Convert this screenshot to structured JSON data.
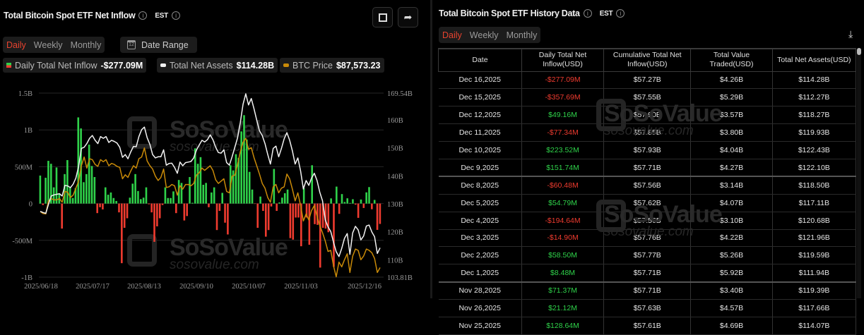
{
  "left": {
    "title": "Total Bitcoin Spot ETF Net Inflow",
    "timezone": "EST",
    "tabs": [
      "Daily",
      "Weekly",
      "Monthly"
    ],
    "active_tab": "Daily",
    "date_range_label": "Date Range",
    "legend": [
      {
        "label": "Daily Total Net Inflow",
        "value": "-$277.09M"
      },
      {
        "label": "Total Net Assets",
        "value": "$114.28B"
      },
      {
        "label": "BTC Price",
        "value": "$87,573.23"
      }
    ],
    "watermark": {
      "brand": "SoSoValue",
      "url": "sosovalue.com"
    }
  },
  "colors": {
    "inflow_positive": "#2fd24a",
    "inflow_negative": "#ef3b2f",
    "net_assets_line": "#f2f2f2",
    "btc_price_line": "#c98a08",
    "active_tab": "#e8432f"
  },
  "chart_data": {
    "type": "bar+line",
    "x_range": [
      "2025/06/18",
      "2025/12/16"
    ],
    "x_ticks": [
      "2025/06/18",
      "2025/07/17",
      "2025/08/13",
      "2025/09/10",
      "2025/10/07",
      "2025/11/03",
      "2025/12/16"
    ],
    "y_left": {
      "ticks": [
        "1.5B",
        "1B",
        "500M",
        "0",
        "-500M",
        "-1B"
      ],
      "tick_values": [
        1500,
        1000,
        500,
        0,
        -500,
        -1000
      ],
      "range": [
        -1000,
        1500
      ],
      "unit": "M USD"
    },
    "y_right": {
      "ticks": [
        "169.54B",
        "160B",
        "150B",
        "140B",
        "130B",
        "120B",
        "110B",
        "103.81B"
      ],
      "tick_values": [
        169.54,
        160,
        150,
        140,
        130,
        120,
        110,
        103.81
      ],
      "range": [
        103.81,
        169.54
      ],
      "unit": "B USD"
    },
    "grid": true,
    "series": [
      {
        "name": "Daily Total Net Inflow",
        "type": "bar",
        "axis": "left",
        "values": [
          380,
          -20,
          350,
          580,
          540,
          220,
          490,
          140,
          -340,
          400,
          590,
          220,
          75,
          210,
          1170,
          1020,
          290,
          400,
          800,
          510,
          360,
          -130,
          -50,
          -80,
          220,
          120,
          150,
          75,
          35,
          -120,
          -810,
          -330,
          -200,
          80,
          270,
          400,
          170,
          60,
          80,
          220,
          -10,
          -120,
          -520,
          -310,
          -200,
          -20,
          220,
          75,
          75,
          165,
          -130,
          320,
          280,
          -230,
          -170,
          360,
          10,
          750,
          540,
          630,
          255,
          280,
          -50,
          150,
          220,
          -360,
          -100,
          145,
          -260,
          -420,
          520,
          450,
          670,
          620,
          980,
          1200,
          870,
          430,
          190,
          -5,
          -330,
          95,
          -100,
          -450,
          -360,
          -40,
          470,
          -100,
          15,
          80,
          140,
          190,
          -470,
          -490,
          -190,
          -190,
          -580,
          210,
          -190,
          -560,
          520,
          -280,
          -290,
          -870,
          -330,
          -340,
          -390,
          70,
          -860,
          230,
          -140,
          128.64,
          21.12,
          71.37,
          8.48,
          58.5,
          -14.9,
          -194.64,
          54.79,
          -60.48,
          151.74,
          223.52,
          -77.34,
          49.16,
          -357.69,
          -277.09
        ]
      },
      {
        "name": "Total Net Assets",
        "type": "line",
        "axis": "right",
        "values": [
          127.3,
          126.9,
          126.6,
          129.8,
          132.8,
          133.2,
          133.4,
          133.6,
          132.8,
          136.6,
          136.4,
          135.8,
          137.0,
          139.2,
          143.4,
          149.8,
          150.2,
          151.5,
          153.4,
          154.4,
          152.7,
          151.5,
          154.0,
          153.4,
          154.0,
          151.9,
          152.7,
          152.3,
          151.7,
          150.2,
          146.6,
          147.6,
          146.1,
          148.5,
          150.5,
          150.4,
          154.0,
          156.5,
          157.4,
          153.6,
          151.2,
          147.6,
          146.4,
          146.8,
          146.8,
          149.3,
          143.8,
          144.4,
          144.5,
          143.0,
          140.9,
          144.9,
          143.6,
          144.7,
          144.9,
          145.1,
          146.4,
          149.2,
          151.0,
          152.7,
          152.1,
          152.9,
          154.6,
          152.9,
          150.2,
          148.3,
          148.1,
          149.3,
          144.7,
          143.8,
          146.8,
          150.2,
          153.6,
          159.1,
          165.5,
          169.3,
          165.3,
          167.6,
          163.9,
          159.9,
          156.1,
          154.4,
          151.5,
          147.6,
          144.2,
          149.8,
          150.6,
          146.8,
          149.8,
          153.2,
          155.4,
          152.7,
          148.9,
          144.2,
          146.4,
          141.7,
          135.3,
          138.3,
          136.6,
          139.2,
          140.9,
          138.3,
          134.1,
          131.1,
          124.3,
          121.8,
          120.1,
          116.3,
          112.9,
          111.2,
          114.07,
          117.66,
          119.39,
          111.94,
          119.59,
          121.96,
          120.68,
          117.11,
          118.5,
          122.1,
          122.43,
          119.93,
          118.27,
          112.27,
          114.28
        ]
      },
      {
        "name": "BTC Price",
        "type": "line",
        "axis": "hidden",
        "values": [
          104300,
          103700,
          103600,
          107500,
          108200,
          107800,
          107800,
          108200,
          107100,
          110300,
          110100,
          108500,
          109200,
          111300,
          113400,
          118000,
          120600,
          117300,
          120100,
          119800,
          118400,
          117800,
          119800,
          119200,
          119800,
          118000,
          118700,
          118400,
          117800,
          117500,
          114100,
          115300,
          114500,
          116400,
          118000,
          117300,
          120100,
          120600,
          123300,
          119400,
          118000,
          117000,
          114900,
          113600,
          114500,
          117000,
          111500,
          111700,
          112400,
          112000,
          109200,
          112000,
          111000,
          112400,
          112400,
          112000,
          112700,
          115200,
          115900,
          117300,
          116600,
          117300,
          118000,
          116600,
          113800,
          112700,
          113400,
          114100,
          110300,
          109900,
          114900,
          115200,
          118400,
          122200,
          125000,
          126200,
          122900,
          123400,
          120400,
          118000,
          115500,
          112700,
          111300,
          108500,
          107100,
          111700,
          112400,
          109900,
          111300,
          111700,
          115500,
          114100,
          111000,
          107500,
          109900,
          106100,
          101500,
          103600,
          101800,
          104600,
          106100,
          102900,
          100100,
          98000,
          95500,
          92400,
          92700,
          88100,
          84800,
          89200,
          87800,
          89900,
          91700,
          86100,
          91000,
          93100,
          92700,
          89900,
          91000,
          93100,
          92700,
          92000,
          90300,
          86100,
          87573.23
        ]
      }
    ]
  },
  "right": {
    "title": "Total Bitcoin Spot ETF History Data",
    "timezone": "EST",
    "tabs": [
      "Daily",
      "Weekly",
      "Monthly"
    ],
    "active_tab": "Daily",
    "columns": [
      "Date",
      "Daily Total Net Inflow(USD)",
      "Cumulative Total Net Inflow(USD)",
      "Total Value Traded(USD)",
      "Total Net Assets(USD)"
    ],
    "rows": [
      [
        "Dec 16,2025",
        "-$277.09M",
        "$57.27B",
        "$4.26B",
        "$114.28B"
      ],
      [
        "Dec 15,2025",
        "-$357.69M",
        "$57.55B",
        "$5.29B",
        "$112.27B"
      ],
      [
        "Dec 12,2025",
        "$49.16M",
        "$57.90B",
        "$3.57B",
        "$118.27B"
      ],
      [
        "Dec 11,2025",
        "-$77.34M",
        "$57.85B",
        "$3.80B",
        "$119.93B"
      ],
      [
        "Dec 10,2025",
        "$223.52M",
        "$57.93B",
        "$4.04B",
        "$122.43B"
      ],
      [
        "Dec 9,2025",
        "$151.74M",
        "$57.71B",
        "$4.27B",
        "$122.10B"
      ],
      [
        "Dec 8,2025",
        "-$60.48M",
        "$57.56B",
        "$3.14B",
        "$118.50B"
      ],
      [
        "Dec 5,2025",
        "$54.79M",
        "$57.62B",
        "$4.07B",
        "$117.11B"
      ],
      [
        "Dec 4,2025",
        "-$194.64M",
        "$57.56B",
        "$3.10B",
        "$120.68B"
      ],
      [
        "Dec 3,2025",
        "-$14.90M",
        "$57.76B",
        "$4.22B",
        "$121.96B"
      ],
      [
        "Dec 2,2025",
        "$58.50M",
        "$57.77B",
        "$5.26B",
        "$119.59B"
      ],
      [
        "Dec 1,2025",
        "$8.48M",
        "$57.71B",
        "$5.92B",
        "$111.94B"
      ],
      [
        "Nov 28,2025",
        "$71.37M",
        "$57.71B",
        "$3.40B",
        "$119.39B"
      ],
      [
        "Nov 26,2025",
        "$21.12M",
        "$57.63B",
        "$4.57B",
        "$117.66B"
      ],
      [
        "Nov 25,2025",
        "$128.64M",
        "$57.61B",
        "$4.69B",
        "$114.07B"
      ]
    ]
  }
}
